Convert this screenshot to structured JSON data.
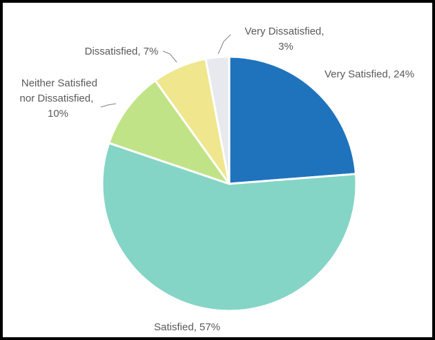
{
  "chart_data": {
    "type": "pie",
    "title": "",
    "colors": {
      "slice_border": "#ffffff",
      "label_text": "#595959",
      "leader_line": "#7f7f7f"
    },
    "slices": [
      {
        "name": "Very Satisfied",
        "value": 24,
        "label": "Very Satisfied, 24%",
        "color": "#1f73bd"
      },
      {
        "name": "Satisfied",
        "value": 57,
        "label": "Satisfied, 57%",
        "color": "#84d5c5"
      },
      {
        "name": "Neither Satisfied nor Dissatisfied",
        "value": 10,
        "label_lines": [
          "Neither Satisfied",
          "nor Dissatisfied,",
          "10%"
        ],
        "color": "#c1e387"
      },
      {
        "name": "Dissatisfied",
        "value": 7,
        "label": "Dissatisfied, 7%",
        "color": "#efe68e"
      },
      {
        "name": "Very Dissatisfied",
        "value": 3,
        "label_lines": [
          "Very Dissatisfied,",
          "3%"
        ],
        "color": "#e7e9ee"
      }
    ]
  }
}
